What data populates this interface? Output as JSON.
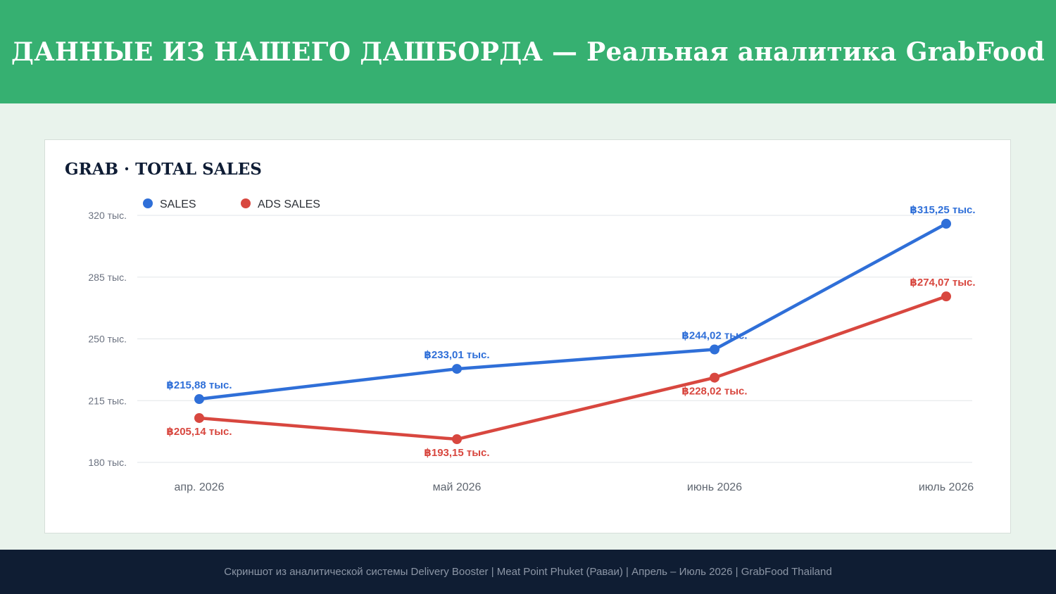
{
  "header": {
    "title": "ДАННЫЕ ИЗ НАШЕГО ДАШБОРДА  —  Реальная аналитика GrabFood"
  },
  "card": {
    "title": "GRAB · TOTAL SALES"
  },
  "footer": {
    "text": "Скриншот из аналитической системы Delivery Booster  |  Meat Point Phuket (Раваи)  |  Апрель – Июль 2026  |  GrabFood Thailand"
  },
  "colors": {
    "header_bg": "#36b071",
    "page_bg": "#e9f3ec",
    "footer_bg": "#0f1d33",
    "sales": "#2f6fd8",
    "ads_sales": "#d8473f"
  },
  "chart_data": {
    "type": "line",
    "title": "GRAB · TOTAL SALES",
    "x": [
      "апр. 2026",
      "май 2026",
      "июнь 2026",
      "июль 2026"
    ],
    "ylim": [
      180,
      320
    ],
    "yticks": [
      320,
      285,
      250,
      215,
      180
    ],
    "ytick_labels": [
      "320 тыс.",
      "285 тыс.",
      "250 тыс.",
      "215 тыс.",
      "180 тыс."
    ],
    "grid": true,
    "legend_position": "top-left",
    "series": [
      {
        "name": "SALES",
        "color": "#2f6fd8",
        "values": [
          215.88,
          233.01,
          244.02,
          315.25
        ],
        "labels": [
          "฿215,88 тыс.",
          "฿233,01 тыс.",
          "฿244,02 тыс.",
          "฿315,25 тыс."
        ],
        "label_side": [
          "above",
          "above",
          "above",
          "above"
        ]
      },
      {
        "name": "ADS SALES",
        "color": "#d8473f",
        "values": [
          205.14,
          193.15,
          228.02,
          274.07
        ],
        "labels": [
          "฿205,14 тыс.",
          "฿193,15 тыс.",
          "฿228,02 тыс.",
          "฿274,07 тыс."
        ],
        "label_side": [
          "below",
          "below",
          "below",
          "above"
        ]
      }
    ]
  }
}
